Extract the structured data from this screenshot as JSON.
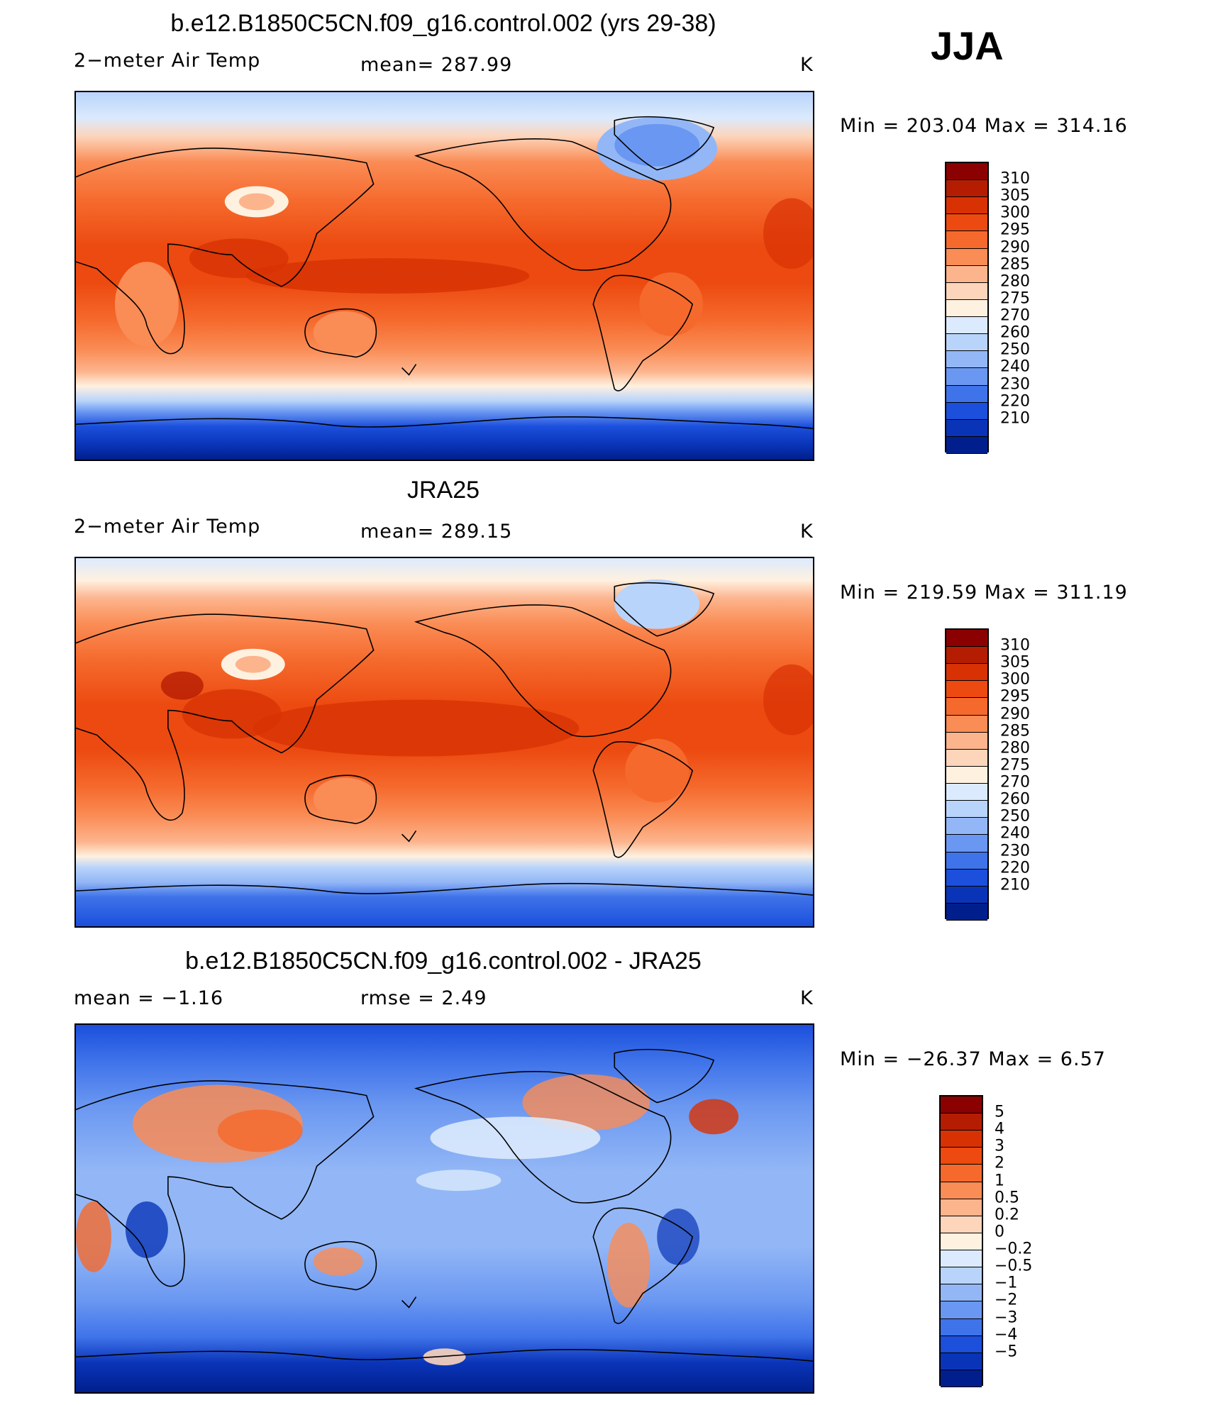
{
  "season": "JJA",
  "panels": [
    {
      "title": "b.e12.B1850C5CN.f09_g16.control.002 (yrs 29-38)",
      "left_label": "2−meter Air Temp",
      "mid_label": "mean=  287.99",
      "unit": "K",
      "minmax": "Min  =  203.04  Max  =  314.16",
      "field": "temp",
      "map_description": "model 2-m air temperature"
    },
    {
      "title": "JRA25",
      "left_label": "2−meter Air Temp",
      "mid_label": "mean=  289.15",
      "unit": "K",
      "minmax": "Min  =  219.59  Max  =  311.19",
      "field": "temp"
    },
    {
      "title": "b.e12.B1850C5CN.f09_g16.control.002 - JRA25",
      "left_label": "mean  =     −1.16",
      "mid_label": "rmse  =     2.49",
      "unit": "K",
      "minmax": "Min  =  −26.37  Max  =     6.57",
      "field": "diff"
    }
  ],
  "legends": {
    "temp": {
      "labels": [
        "310",
        "305",
        "300",
        "295",
        "290",
        "285",
        "280",
        "275",
        "270",
        "260",
        "250",
        "240",
        "230",
        "220",
        "210"
      ],
      "colors": [
        "#8b0000",
        "#b51d02",
        "#d83204",
        "#ec4a10",
        "#f5692c",
        "#fa8c55",
        "#fcb48d",
        "#fdd5bb",
        "#fff1e0",
        "#dbeafd",
        "#b9d4fb",
        "#93b7f6",
        "#6a97f1",
        "#3f73ea",
        "#1b4fdc",
        "#0a34b8",
        "#001f8c"
      ]
    },
    "diff": {
      "labels": [
        "5",
        "4",
        "3",
        "2",
        "1",
        "0.5",
        "0.2",
        "0",
        "−0.2",
        "−0.5",
        "−1",
        "−2",
        "−3",
        "−4",
        "−5"
      ],
      "colors": [
        "#8b0000",
        "#b51d02",
        "#d83204",
        "#ec4a10",
        "#f5692c",
        "#fa8c55",
        "#fcb48d",
        "#fdd5bb",
        "#fff1e0",
        "#dbeafd",
        "#b9d4fb",
        "#93b7f6",
        "#6a97f1",
        "#3f73ea",
        "#1b4fdc",
        "#0a34b8",
        "#001f8c"
      ]
    }
  }
}
